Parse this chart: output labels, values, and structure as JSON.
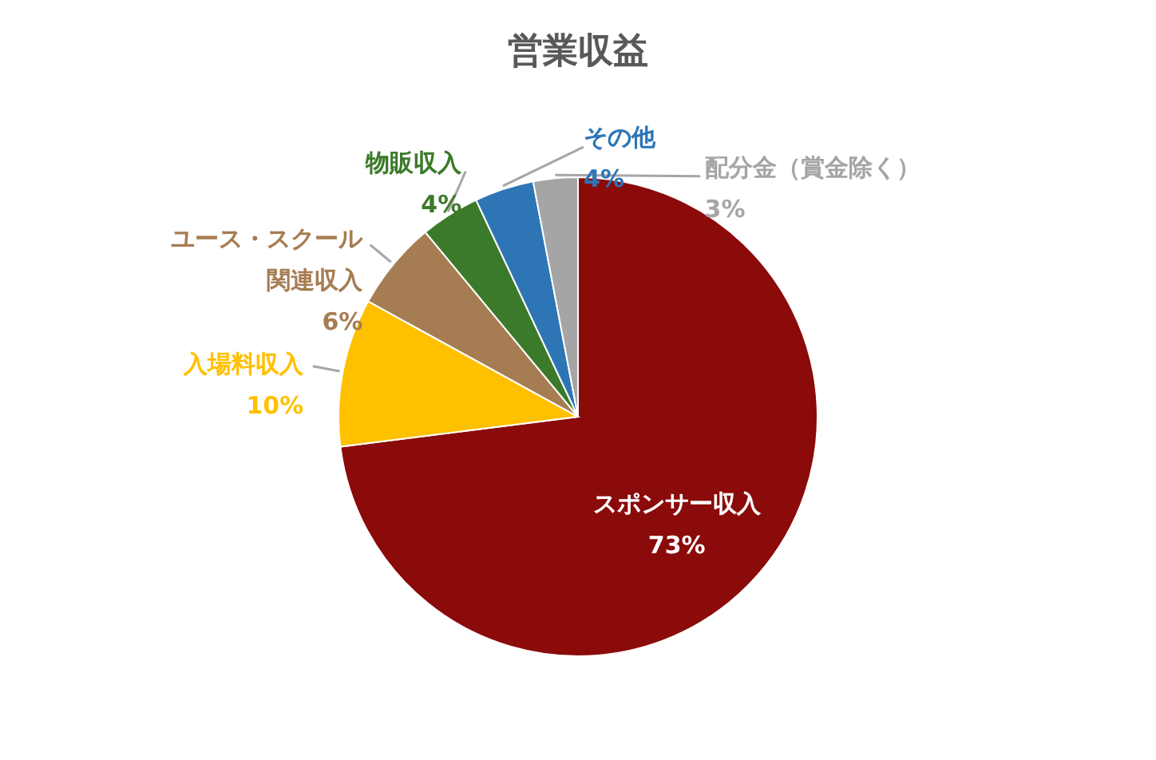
{
  "chart_data": {
    "type": "pie",
    "title": "営業収益",
    "categories": [
      "スポンサー収入",
      "入場料収入",
      "ユース・スクール関連収入",
      "物販収入",
      "その他",
      "配分金（賞金除く）"
    ],
    "values": [
      73,
      10,
      6,
      4,
      4,
      3
    ],
    "value_labels": [
      "73%",
      "10%",
      "6%",
      "4%",
      "4%",
      "3%"
    ],
    "colors": [
      "#8b0a0a",
      "#ffc000",
      "#a67c52",
      "#3b7a2a",
      "#2e75b6",
      "#a5a5a5"
    ]
  }
}
